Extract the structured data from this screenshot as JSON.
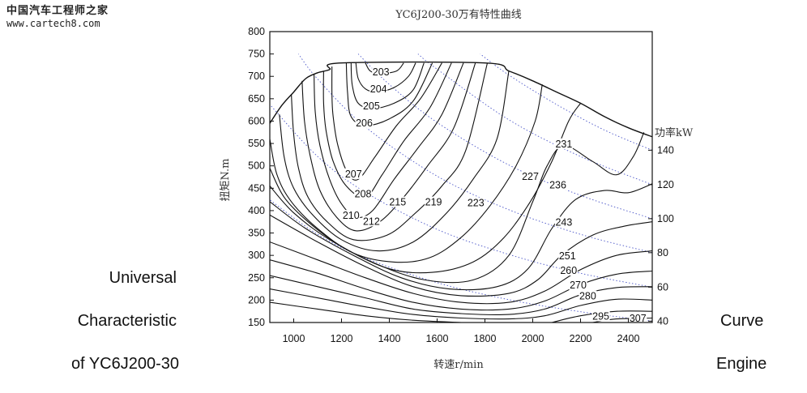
{
  "watermark": {
    "cn": "中国汽车工程师之家",
    "url": "www.cartech8.com"
  },
  "side_text": {
    "left": [
      "Universal",
      "Characteristic",
      "of YC6J200-30"
    ],
    "right": [
      "Curve",
      "Engine"
    ]
  },
  "chart_data": {
    "type": "contour",
    "title": "YC6J200-30万有特性曲线",
    "xlabel": "转速r/min",
    "ylabel": "扭矩N.m",
    "power_axis_label": "功率kW",
    "xlim": [
      900,
      2500
    ],
    "ylim": [
      150,
      800
    ],
    "x_ticks": [
      1000,
      1200,
      1400,
      1600,
      1800,
      2000,
      2200,
      2400
    ],
    "y_ticks": [
      150,
      200,
      250,
      300,
      350,
      400,
      450,
      500,
      550,
      600,
      650,
      700,
      750,
      800
    ],
    "power_ticks": [
      40,
      60,
      80,
      100,
      120,
      140
    ],
    "grid": false,
    "full_load_curve": [
      [
        900,
        595
      ],
      [
        950,
        635
      ],
      [
        1000,
        665
      ],
      [
        1050,
        695
      ],
      [
        1100,
        708
      ],
      [
        1150,
        715
      ],
      [
        1200,
        730
      ],
      [
        1800,
        730
      ],
      [
        1900,
        712
      ],
      [
        2000,
        690
      ],
      [
        2100,
        665
      ],
      [
        2200,
        640
      ],
      [
        2300,
        610
      ],
      [
        2400,
        585
      ],
      [
        2500,
        565
      ]
    ],
    "bsfc_contours": [
      {
        "level": "203",
        "points": [
          [
            1300,
            730
          ],
          [
            1320,
            712
          ],
          [
            1360,
            706
          ],
          [
            1430,
            712
          ],
          [
            1460,
            730
          ]
        ]
      },
      {
        "level": "204",
        "points": [
          [
            1260,
            730
          ],
          [
            1270,
            695
          ],
          [
            1300,
            672
          ],
          [
            1350,
            665
          ],
          [
            1420,
            675
          ],
          [
            1480,
            700
          ],
          [
            1510,
            730
          ]
        ]
      },
      {
        "level": "205",
        "points": [
          [
            1240,
            730
          ],
          [
            1245,
            680
          ],
          [
            1270,
            640
          ],
          [
            1330,
            628
          ],
          [
            1420,
            640
          ],
          [
            1500,
            670
          ],
          [
            1545,
            730
          ]
        ]
      },
      {
        "level": "206",
        "points": [
          [
            1220,
            730
          ],
          [
            1225,
            665
          ],
          [
            1240,
            610
          ],
          [
            1300,
            590
          ],
          [
            1400,
            605
          ],
          [
            1500,
            645
          ],
          [
            1580,
            730
          ]
        ]
      },
      {
        "level": "207",
        "points": [
          [
            1160,
            722
          ],
          [
            1160,
            660
          ],
          [
            1165,
            610
          ],
          [
            1185,
            545
          ],
          [
            1225,
            485
          ],
          [
            1270,
            470
          ],
          [
            1340,
            520
          ],
          [
            1430,
            590
          ],
          [
            1530,
            650
          ],
          [
            1620,
            730
          ]
        ]
      },
      {
        "level": "208",
        "points": [
          [
            1125,
            712
          ],
          [
            1125,
            640
          ],
          [
            1135,
            580
          ],
          [
            1165,
            510
          ],
          [
            1220,
            455
          ],
          [
            1300,
            430
          ],
          [
            1370,
            480
          ],
          [
            1460,
            555
          ],
          [
            1570,
            630
          ],
          [
            1660,
            730
          ]
        ]
      },
      {
        "level": "210",
        "points": [
          [
            1085,
            705
          ],
          [
            1090,
            620
          ],
          [
            1110,
            545
          ],
          [
            1150,
            470
          ],
          [
            1200,
            415
          ],
          [
            1260,
            385
          ],
          [
            1330,
            400
          ],
          [
            1420,
            470
          ],
          [
            1520,
            540
          ],
          [
            1620,
            615
          ],
          [
            1710,
            730
          ]
        ]
      },
      {
        "level": "212",
        "points": [
          [
            1035,
            690
          ],
          [
            1045,
            600
          ],
          [
            1070,
            520
          ],
          [
            1110,
            445
          ],
          [
            1180,
            385
          ],
          [
            1260,
            355
          ],
          [
            1360,
            375
          ],
          [
            1460,
            430
          ],
          [
            1560,
            500
          ],
          [
            1670,
            585
          ],
          [
            1760,
            730
          ]
        ]
      },
      {
        "level": "215",
        "points": [
          [
            990,
            660
          ],
          [
            1000,
            570
          ],
          [
            1020,
            495
          ],
          [
            1060,
            430
          ],
          [
            1140,
            375
          ],
          [
            1250,
            335
          ],
          [
            1390,
            345
          ],
          [
            1500,
            390
          ],
          [
            1620,
            455
          ],
          [
            1720,
            535
          ],
          [
            1810,
            730
          ]
        ]
      },
      {
        "level": "219",
        "points": [
          [
            940,
            615
          ],
          [
            960,
            520
          ],
          [
            1000,
            450
          ],
          [
            1080,
            390
          ],
          [
            1200,
            335
          ],
          [
            1350,
            310
          ],
          [
            1500,
            330
          ],
          [
            1640,
            395
          ],
          [
            1750,
            470
          ],
          [
            1850,
            560
          ],
          [
            1900,
            712
          ]
        ]
      },
      {
        "level": "223",
        "points": [
          [
            900,
            560
          ],
          [
            930,
            480
          ],
          [
            990,
            420
          ],
          [
            1100,
            360
          ],
          [
            1250,
            305
          ],
          [
            1420,
            285
          ],
          [
            1570,
            295
          ],
          [
            1700,
            340
          ],
          [
            1820,
            410
          ],
          [
            1930,
            500
          ],
          [
            2010,
            600
          ],
          [
            2040,
            682
          ]
        ]
      },
      {
        "level": "227",
        "points": [
          [
            900,
            495
          ],
          [
            960,
            430
          ],
          [
            1060,
            375
          ],
          [
            1200,
            320
          ],
          [
            1400,
            270
          ],
          [
            1580,
            262
          ],
          [
            1750,
            285
          ],
          [
            1880,
            340
          ],
          [
            1990,
            420
          ],
          [
            2080,
            510
          ],
          [
            2150,
            600
          ],
          [
            2200,
            640
          ]
        ]
      },
      {
        "level": "231",
        "points": [
          [
            900,
            455
          ],
          [
            1000,
            395
          ],
          [
            1150,
            335
          ],
          [
            1350,
            280
          ],
          [
            1550,
            245
          ],
          [
            1750,
            245
          ],
          [
            1900,
            300
          ],
          [
            2000,
            420
          ],
          [
            2060,
            500
          ],
          [
            2130,
            545
          ],
          [
            2250,
            510
          ],
          [
            2350,
            480
          ],
          [
            2420,
            520
          ],
          [
            2465,
            575
          ]
        ]
      },
      {
        "level": "236",
        "points": [
          [
            900,
            420
          ],
          [
            1050,
            360
          ],
          [
            1250,
            300
          ],
          [
            1450,
            250
          ],
          [
            1650,
            225
          ],
          [
            1850,
            230
          ],
          [
            1980,
            270
          ],
          [
            2080,
            360
          ],
          [
            2180,
            425
          ],
          [
            2300,
            445
          ],
          [
            2400,
            440
          ],
          [
            2500,
            460
          ]
        ]
      },
      {
        "level": "243",
        "points": [
          [
            900,
            390
          ],
          [
            1100,
            330
          ],
          [
            1300,
            275
          ],
          [
            1500,
            230
          ],
          [
            1700,
            210
          ],
          [
            1900,
            215
          ],
          [
            2020,
            245
          ],
          [
            2120,
            300
          ],
          [
            2250,
            345
          ],
          [
            2380,
            365
          ],
          [
            2500,
            375
          ]
        ]
      },
      {
        "level": "251",
        "points": [
          [
            900,
            330
          ],
          [
            1100,
            290
          ],
          [
            1300,
            250
          ],
          [
            1500,
            215
          ],
          [
            1700,
            195
          ],
          [
            1900,
            195
          ],
          [
            2050,
            220
          ],
          [
            2200,
            268
          ],
          [
            2350,
            300
          ],
          [
            2500,
            310
          ]
        ]
      },
      {
        "level": "260",
        "points": [
          [
            900,
            290
          ],
          [
            1100,
            260
          ],
          [
            1300,
            225
          ],
          [
            1500,
            195
          ],
          [
            1700,
            180
          ],
          [
            1900,
            180
          ],
          [
            2050,
            198
          ],
          [
            2200,
            235
          ],
          [
            2350,
            258
          ],
          [
            2500,
            265
          ]
        ]
      },
      {
        "level": "270",
        "points": [
          [
            900,
            255
          ],
          [
            1100,
            230
          ],
          [
            1300,
            205
          ],
          [
            1500,
            180
          ],
          [
            1700,
            170
          ],
          [
            1900,
            168
          ],
          [
            2050,
            180
          ],
          [
            2200,
            212
          ],
          [
            2350,
            228
          ],
          [
            2500,
            230
          ]
        ]
      },
      {
        "level": "280",
        "points": [
          [
            900,
            225
          ],
          [
            1100,
            205
          ],
          [
            1300,
            185
          ],
          [
            1500,
            168
          ],
          [
            1700,
            160
          ],
          [
            1900,
            158
          ],
          [
            2050,
            165
          ],
          [
            2200,
            188
          ],
          [
            2350,
            202
          ],
          [
            2500,
            200
          ]
        ]
      },
      {
        "level": "295",
        "points": [
          [
            900,
            195
          ],
          [
            1100,
            180
          ],
          [
            1300,
            165
          ],
          [
            1500,
            155
          ],
          [
            1700,
            150
          ]
        ]
      },
      {
        "level": "",
        "points": [
          [
            2080,
            150
          ],
          [
            2200,
            165
          ],
          [
            2350,
            175
          ],
          [
            2500,
            175
          ]
        ]
      },
      {
        "level": "307",
        "points": [
          [
            2250,
            150
          ],
          [
            2350,
            158
          ],
          [
            2500,
            160
          ]
        ]
      }
    ],
    "contour_labels": [
      {
        "text": "203",
        "x": 1365,
        "y": 706
      },
      {
        "text": "204",
        "x": 1355,
        "y": 668
      },
      {
        "text": "205",
        "x": 1325,
        "y": 630
      },
      {
        "text": "206",
        "x": 1295,
        "y": 592
      },
      {
        "text": "207",
        "x": 1250,
        "y": 478
      },
      {
        "text": "208",
        "x": 1290,
        "y": 433
      },
      {
        "text": "210",
        "x": 1240,
        "y": 385
      },
      {
        "text": "212",
        "x": 1325,
        "y": 372
      },
      {
        "text": "215",
        "x": 1435,
        "y": 415
      },
      {
        "text": "219",
        "x": 1585,
        "y": 415
      },
      {
        "text": "223",
        "x": 1762,
        "y": 413
      },
      {
        "text": "227",
        "x": 1990,
        "y": 472
      },
      {
        "text": "231",
        "x": 2130,
        "y": 545
      },
      {
        "text": "236",
        "x": 2105,
        "y": 453
      },
      {
        "text": "243",
        "x": 2130,
        "y": 370
      },
      {
        "text": "251",
        "x": 2145,
        "y": 295
      },
      {
        "text": "260",
        "x": 2150,
        "y": 262
      },
      {
        "text": "270",
        "x": 2190,
        "y": 230
      },
      {
        "text": "280",
        "x": 2230,
        "y": 205
      },
      {
        "text": "295",
        "x": 2285,
        "y": 160
      },
      {
        "text": "307",
        "x": 2440,
        "y": 155
      }
    ],
    "power_lines": [
      {
        "power_kw": 140,
        "points": [
          [
            2500,
            535
          ],
          [
            2300,
            580
          ],
          [
            2100,
            637
          ],
          [
            1900,
            703
          ],
          [
            1780,
            750
          ]
        ]
      },
      {
        "power_kw": 120,
        "points": [
          [
            2500,
            458
          ],
          [
            2200,
            521
          ],
          [
            1900,
            603
          ],
          [
            1600,
            716
          ],
          [
            1520,
            750
          ]
        ]
      },
      {
        "power_kw": 100,
        "points": [
          [
            2500,
            382
          ],
          [
            2200,
            434
          ],
          [
            1900,
            502
          ],
          [
            1600,
            597
          ],
          [
            1400,
            682
          ],
          [
            1270,
            750
          ]
        ]
      },
      {
        "power_kw": 80,
        "points": [
          [
            2500,
            306
          ],
          [
            2200,
            347
          ],
          [
            1900,
            402
          ],
          [
            1600,
            477
          ],
          [
            1300,
            587
          ],
          [
            1100,
            694
          ],
          [
            1020,
            750
          ]
        ]
      },
      {
        "power_kw": 60,
        "points": [
          [
            2500,
            229
          ],
          [
            2200,
            260
          ],
          [
            1900,
            302
          ],
          [
            1600,
            358
          ],
          [
            1300,
            441
          ],
          [
            1100,
            521
          ],
          [
            900,
            637
          ]
        ]
      },
      {
        "power_kw": 40,
        "points": [
          [
            2500,
            153
          ],
          [
            2200,
            174
          ],
          [
            1900,
            201
          ],
          [
            1600,
            239
          ],
          [
            1300,
            294
          ],
          [
            1100,
            347
          ],
          [
            900,
            424
          ]
        ]
      }
    ]
  }
}
